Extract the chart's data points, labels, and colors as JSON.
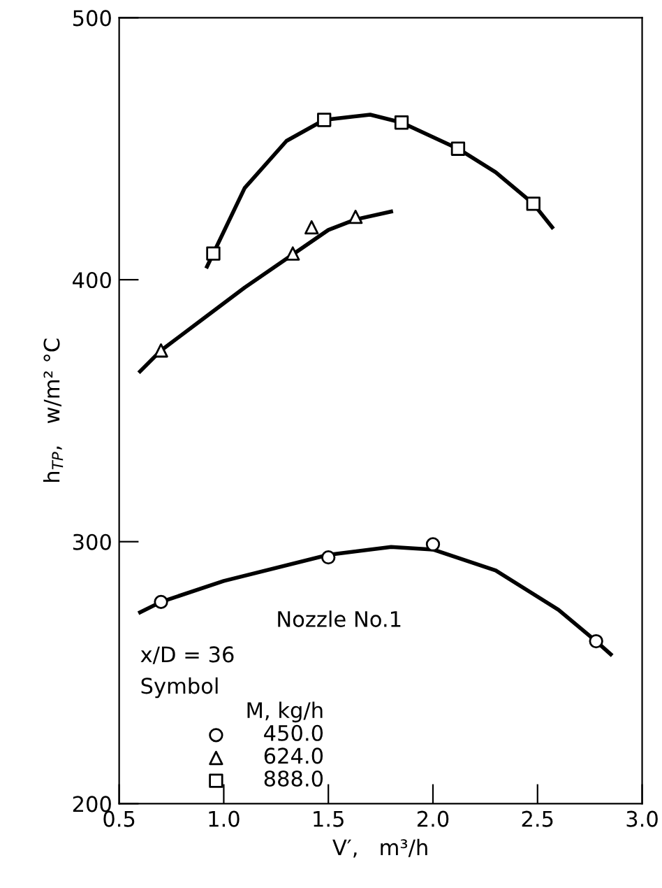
{
  "chart_data": {
    "type": "scatter",
    "xlabel": "V′,   m³/h",
    "ylabel": "h$_{TP}$,   w/m² °C",
    "legend_title": "M, kg/h",
    "annotations": [
      "Nozzle No.1",
      "x/D = 36",
      "Symbol"
    ],
    "xlim": [
      0.5,
      3.0
    ],
    "xticks": [
      0.5,
      {
        "value": 1,
        "label": "1.0"
      },
      1.5,
      {
        "value": 2,
        "label": "2.0"
      },
      2.5,
      {
        "value": 3,
        "label": "3.0"
      }
    ],
    "ylim": [
      200,
      500
    ],
    "yticks": [
      200,
      300,
      400,
      500
    ],
    "grid": false,
    "legend": "bottom left",
    "series": [
      {
        "name": "450.0",
        "color": "#000000",
        "marker": "circle",
        "x": [
          0.7,
          1.5,
          2.0,
          2.78
        ],
        "values": [
          277,
          294,
          299,
          262
        ]
      },
      {
        "name": "624.0",
        "color": "#000000",
        "marker": "triangle",
        "x": [
          0.7,
          1.33,
          1.42,
          1.63
        ],
        "values": [
          373,
          410,
          420,
          424
        ]
      },
      {
        "name": "888.0",
        "color": "#000000",
        "marker": "square",
        "x": [
          0.95,
          1.48,
          1.85,
          2.12,
          2.48
        ],
        "values": [
          410,
          461,
          460,
          450,
          429
        ]
      },
      {
        "type": "line",
        "color": "#000000",
        "marker": "none",
        "x": [
          0.6,
          0.7,
          1.0,
          1.5,
          1.8,
          2.0,
          2.3,
          2.6,
          2.78,
          2.85
        ],
        "values": [
          273,
          277,
          285,
          295,
          298,
          297,
          289,
          274,
          262,
          257
        ]
      },
      {
        "type": "line",
        "color": "#000000",
        "marker": "none",
        "x": [
          0.6,
          0.7,
          0.9,
          1.1,
          1.5,
          1.63,
          1.8
        ],
        "values": [
          365,
          373,
          385,
          397,
          419,
          423,
          426
        ]
      },
      {
        "type": "line",
        "color": "#000000",
        "marker": "none",
        "x": [
          0.92,
          1.1,
          1.3,
          1.48,
          1.7,
          1.85,
          2.12,
          2.3,
          2.48,
          2.57
        ],
        "values": [
          405,
          435,
          453,
          461,
          463,
          460,
          450,
          441,
          429,
          420
        ]
      }
    ]
  }
}
